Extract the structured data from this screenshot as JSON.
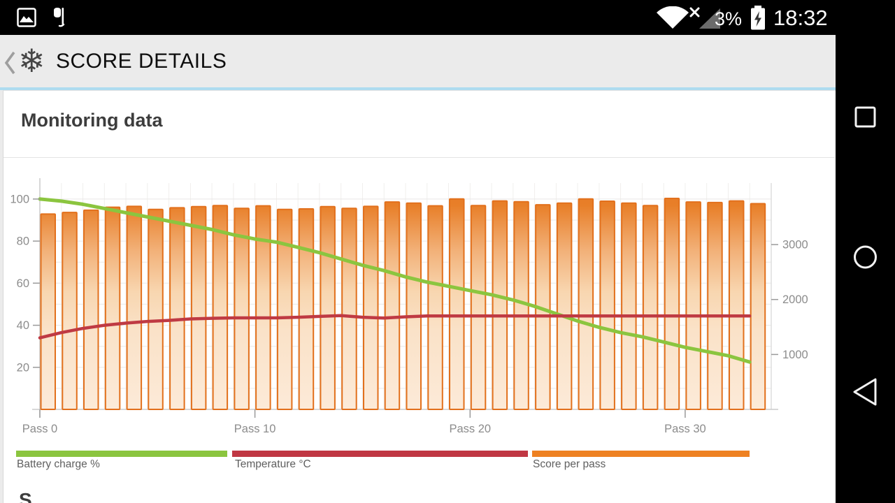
{
  "status_bar": {
    "time": "18:32",
    "battery_level": "3%",
    "left_icons": [
      "photo-icon",
      "headset-icon"
    ],
    "right_icons": [
      "wifi-icon",
      "cell-signal-x-icon",
      "battery-charging-icon"
    ]
  },
  "header": {
    "title": "SCORE DETAILS",
    "back_icon": "chevron-left-icon",
    "app_icon": "snowflake-icon"
  },
  "monitoring": {
    "title": "Monitoring data"
  },
  "next_section_partial_text": "S",
  "legend": {
    "items": [
      {
        "label": "Battery charge %",
        "color": "#8bc53f"
      },
      {
        "label": "Temperature °C",
        "color": "#c03743"
      },
      {
        "label": "Score per pass",
        "color": "#ee8122"
      }
    ]
  },
  "nav_bar": {
    "buttons": [
      "recents-button",
      "home-button",
      "back-button"
    ]
  },
  "chart_data": {
    "type": "bar",
    "title": "Monitoring data",
    "passes": 34,
    "x_ticks": [
      {
        "pass": 0,
        "label": "Pass 0"
      },
      {
        "pass": 10,
        "label": "Pass 10"
      },
      {
        "pass": 20,
        "label": "Pass 20"
      },
      {
        "pass": 30,
        "label": "Pass 30"
      }
    ],
    "left_axis": {
      "ticks": [
        20,
        40,
        60,
        80,
        100
      ],
      "max": 107.6
    },
    "right_axis": {
      "ticks": [
        1000,
        2000,
        3000
      ],
      "max": 4120
    },
    "grid": true,
    "legend_position": "bottom",
    "series": [
      {
        "name": "Score per pass",
        "type": "bar",
        "axis": "right",
        "color": "#e2701c",
        "values": [
          3555,
          3585,
          3625,
          3680,
          3695,
          3640,
          3670,
          3690,
          3710,
          3660,
          3705,
          3640,
          3650,
          3690,
          3660,
          3695,
          3775,
          3755,
          3705,
          3830,
          3710,
          3795,
          3780,
          3725,
          3755,
          3830,
          3790,
          3755,
          3710,
          3840,
          3775,
          3765,
          3795,
          3745
        ]
      },
      {
        "name": "Battery charge %",
        "type": "line",
        "axis": "left",
        "color": "#8bc53f",
        "values": [
          100,
          99,
          97.5,
          95.5,
          93.5,
          91.5,
          89.5,
          87.5,
          85.5,
          83,
          81,
          79.5,
          77,
          74.5,
          71.5,
          68.5,
          66,
          63,
          60.5,
          58.5,
          56.5,
          54.5,
          52,
          49,
          45.5,
          42,
          39,
          36.5,
          34.5,
          32,
          29.5,
          27.5,
          25.5,
          22.5
        ]
      },
      {
        "name": "Temperature °C",
        "type": "line",
        "axis": "left",
        "color": "#bf3a43",
        "values": [
          34,
          36.5,
          38.5,
          40,
          41,
          41.8,
          42.3,
          43,
          43.3,
          43.5,
          43.5,
          43.5,
          43.8,
          44.2,
          44.6,
          43.8,
          43.4,
          44,
          44.4,
          44.4,
          44.4,
          44.4,
          44.4,
          44.4,
          44.4,
          44.4,
          44.4,
          44.4,
          44.4,
          44.4,
          44.4,
          44.4,
          44.4,
          44.4
        ]
      }
    ]
  }
}
